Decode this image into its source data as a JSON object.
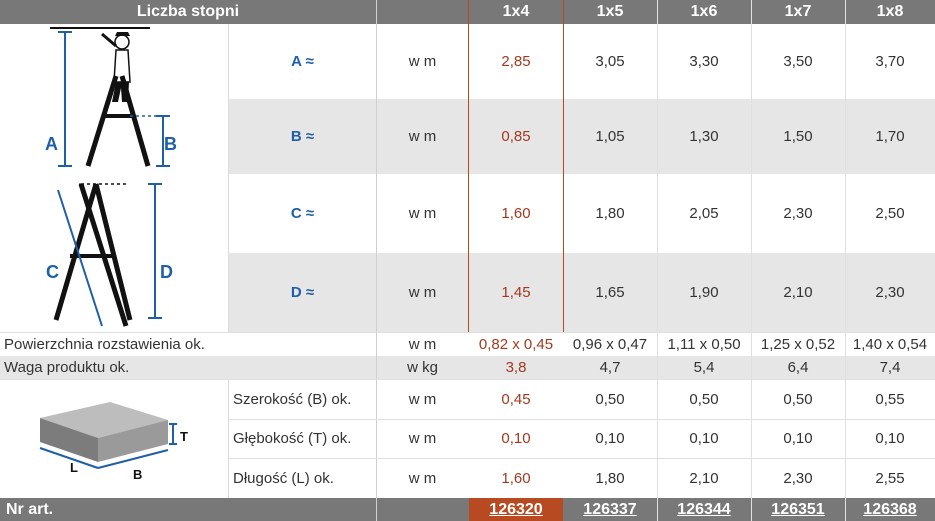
{
  "header": {
    "title": "Liczba stopni",
    "columns": [
      "1x4",
      "1x5",
      "1x6",
      "1x7",
      "1x8"
    ]
  },
  "diagram_labels": {
    "A": "A",
    "B": "B",
    "C": "C",
    "D": "D",
    "T": "T",
    "L": "L",
    "Bbox": "B"
  },
  "rows": {
    "A": {
      "label": "A ≈",
      "unit": "w m",
      "values": [
        "2,85",
        "3,05",
        "3,30",
        "3,50",
        "3,70"
      ]
    },
    "B": {
      "label": "B ≈",
      "unit": "w m",
      "values": [
        "0,85",
        "1,05",
        "1,30",
        "1,50",
        "1,70"
      ]
    },
    "C": {
      "label": "C ≈",
      "unit": "w m",
      "values": [
        "1,60",
        "1,80",
        "2,05",
        "2,30",
        "2,50"
      ]
    },
    "D": {
      "label": "D ≈",
      "unit": "w m",
      "values": [
        "1,45",
        "1,65",
        "1,90",
        "2,10",
        "2,30"
      ]
    },
    "surface": {
      "label": "Powierzchnia rozstawienia ok.",
      "unit": "w m",
      "values": [
        "0,82 x 0,45",
        "0,96 x 0,47",
        "1,11 x 0,50",
        "1,25 x 0,52",
        "1,40 x 0,54"
      ]
    },
    "weight": {
      "label": "Waga produktu ok.",
      "unit": "w kg",
      "values": [
        "3,8",
        "4,7",
        "5,4",
        "6,4",
        "7,4"
      ]
    },
    "width": {
      "label": "Szerokość (B) ok.",
      "unit": "w m",
      "values": [
        "0,45",
        "0,50",
        "0,50",
        "0,50",
        "0,55"
      ]
    },
    "depth": {
      "label": "Głębokość (T) ok.",
      "unit": "w m",
      "values": [
        "0,10",
        "0,10",
        "0,10",
        "0,10",
        "0,10"
      ]
    },
    "length": {
      "label": "Długość (L) ok.",
      "unit": "w m",
      "values": [
        "1,60",
        "1,80",
        "2,10",
        "2,30",
        "2,55"
      ]
    }
  },
  "footer": {
    "label": "Nr art.",
    "articles": [
      "126320",
      "126337",
      "126344",
      "126351",
      "126368"
    ]
  },
  "colors": {
    "header": "#787878",
    "highlight": "#b84a22",
    "shade": "#e6e6e6",
    "label_blue": "#1f5fa8"
  }
}
